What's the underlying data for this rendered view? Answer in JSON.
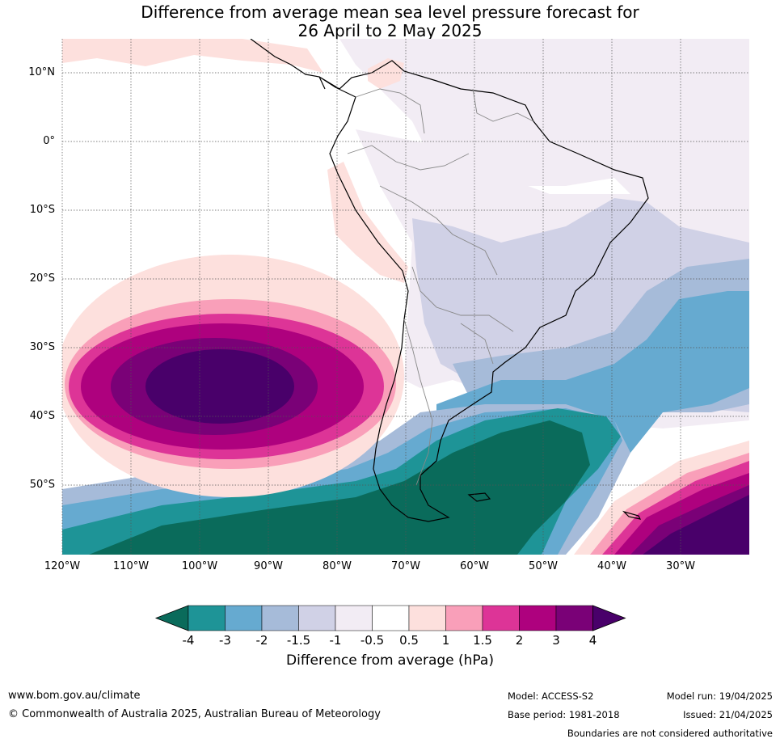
{
  "title": {
    "line1": "Difference from average mean sea level pressure forecast for",
    "line2": "26 April to 2 May 2025"
  },
  "map": {
    "lat_labels": [
      "10°N",
      "0°",
      "10°S",
      "20°S",
      "30°S",
      "40°S",
      "50°S"
    ],
    "lon_labels": [
      "120°W",
      "110°W",
      "100°W",
      "90°W",
      "80°W",
      "70°W",
      "60°W",
      "50°W",
      "40°W",
      "30°W"
    ],
    "extent": {
      "lon": [
        -120,
        -20
      ],
      "lat": [
        -60,
        15
      ]
    },
    "grid": true
  },
  "colorbar": {
    "ticks": [
      "-4",
      "-3",
      "-2",
      "-1.5",
      "-1",
      "-0.5",
      "0.5",
      "1",
      "1.5",
      "2",
      "3",
      "4"
    ],
    "colors": [
      "#0a6b5b",
      "#1e9497",
      "#66aad0",
      "#a6bbd9",
      "#d0d1e6",
      "#f2ecf4",
      "#ffffff",
      "#fde0dd",
      "#f99fb9",
      "#dd3497",
      "#ae017e",
      "#7a0177",
      "#49006a"
    ],
    "label": "Difference from average (hPa)"
  },
  "footer": {
    "website": "www.bom.gov.au/climate",
    "copyright": "© Commonwealth of Australia 2025, Australian Bureau of Meteorology",
    "model": "Model: ACCESS-S2",
    "base_period": "Base period: 1981-2018",
    "model_run": "Model run: 19/04/2025",
    "issued": "Issued: 21/04/2025",
    "disclaimer": "Boundaries are not considered authoritative"
  }
}
